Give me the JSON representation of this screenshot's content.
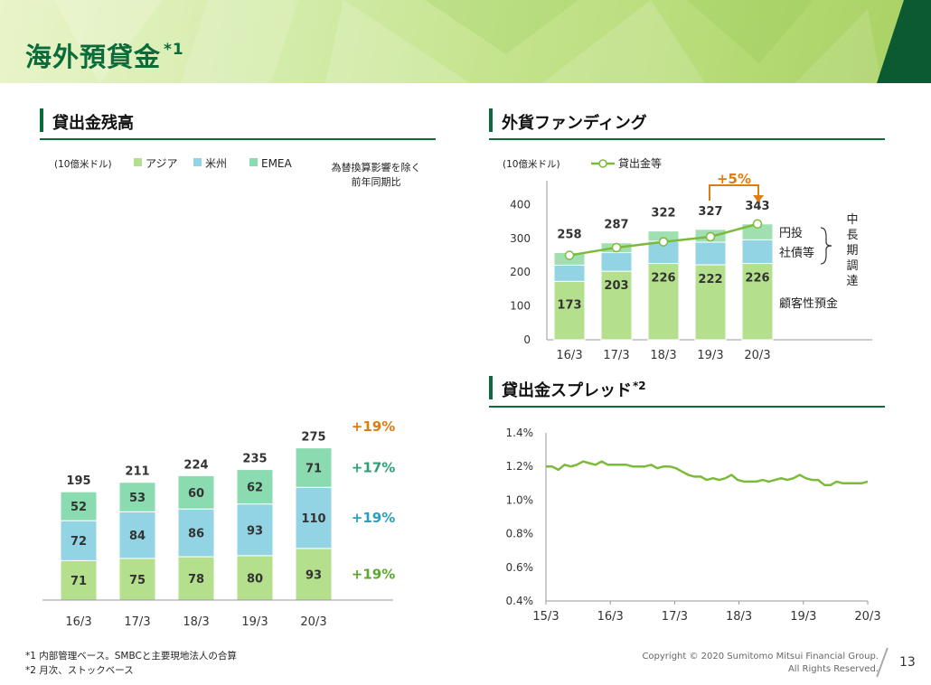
{
  "page": {
    "title": "海外預貸金",
    "title_note": "*1",
    "copyright_line1": "Copyright © 2020 Sumitomo Mitsui Financial Group.",
    "copyright_line2": "All Rights Reserved.",
    "page_number": "13",
    "footnotes": [
      "*1 内部管理ベース。SMBCと主要現地法人の合算",
      "*2 月次、ストックベース"
    ]
  },
  "sections": {
    "loans": "貸出金残高",
    "funding": "外貨ファンディング",
    "spread": "貸出金スプレッド",
    "spread_note": "*2"
  },
  "colors": {
    "asia": "#b4e08e",
    "americas": "#92d4e4",
    "emea": "#8bdbb0",
    "funding_top": "#9fdfb0",
    "funding_mid": "#92d4e4",
    "funding_base": "#b4e08e",
    "line": "#7cbb3a",
    "orange": "#e07b12",
    "teal": "#2f9f73",
    "blue": "#2a9fbd",
    "green_text": "#5ea82d",
    "dark_green": "#0b6b3a"
  },
  "chart_data": [
    {
      "type": "bar",
      "stacked": true,
      "unit": "(10億米ドル)",
      "categories": [
        "16/3",
        "17/3",
        "18/3",
        "19/3",
        "20/3"
      ],
      "series": [
        {
          "name": "アジア",
          "values": [
            71,
            75,
            78,
            80,
            93
          ]
        },
        {
          "name": "米州",
          "values": [
            72,
            84,
            86,
            93,
            110
          ]
        },
        {
          "name": "EMEA",
          "values": [
            52,
            53,
            60,
            62,
            71
          ]
        }
      ],
      "totals": [
        195,
        211,
        224,
        235,
        275
      ],
      "annotation_header": [
        "為替換算影響を除く",
        "前年同期比"
      ],
      "growth": [
        {
          "label": "+19%",
          "target": "total"
        },
        {
          "label": "+17%",
          "target": "EMEA"
        },
        {
          "label": "+19%",
          "target": "米州"
        },
        {
          "label": "+19%",
          "target": "アジア"
        }
      ],
      "ylim": [
        0,
        290
      ],
      "legend": "top"
    },
    {
      "type": "bar",
      "stacked": true,
      "unit": "(10億米ドル)",
      "categories": [
        "16/3",
        "17/3",
        "18/3",
        "19/3",
        "20/3"
      ],
      "base_series": {
        "name": "顧客性預金",
        "values": [
          173,
          203,
          226,
          222,
          226
        ]
      },
      "mid_series": {
        "name": "社債等",
        "values": [
          48,
          55,
          66,
          67,
          70
        ]
      },
      "top_series": {
        "name": "円投",
        "values": [
          37,
          29,
          30,
          38,
          47
        ]
      },
      "totals": [
        258,
        287,
        322,
        327,
        343
      ],
      "line_series": {
        "name": "貸出金等",
        "values": [
          250,
          273,
          290,
          305,
          343
        ]
      },
      "bracket_label": "中長期調達",
      "change_label": "+5%",
      "yticks": [
        0,
        100,
        200,
        300,
        400
      ],
      "ylim": [
        0,
        400
      ]
    },
    {
      "type": "line",
      "x_ticks": [
        "15/3",
        "16/3",
        "17/3",
        "18/3",
        "19/3",
        "20/3"
      ],
      "y_ticks": [
        "0.4%",
        "0.6%",
        "0.8%",
        "1.0%",
        "1.2%",
        "1.4%"
      ],
      "ylim": [
        0.4,
        1.4
      ],
      "values": [
        1.2,
        1.2,
        1.18,
        1.21,
        1.2,
        1.21,
        1.23,
        1.22,
        1.21,
        1.23,
        1.21,
        1.21,
        1.21,
        1.21,
        1.2,
        1.2,
        1.2,
        1.21,
        1.19,
        1.2,
        1.2,
        1.19,
        1.17,
        1.15,
        1.14,
        1.14,
        1.12,
        1.13,
        1.12,
        1.13,
        1.15,
        1.12,
        1.11,
        1.11,
        1.11,
        1.12,
        1.11,
        1.12,
        1.13,
        1.12,
        1.13,
        1.15,
        1.13,
        1.12,
        1.12,
        1.09,
        1.09,
        1.11,
        1.1,
        1.1,
        1.1,
        1.1,
        1.11
      ]
    }
  ]
}
